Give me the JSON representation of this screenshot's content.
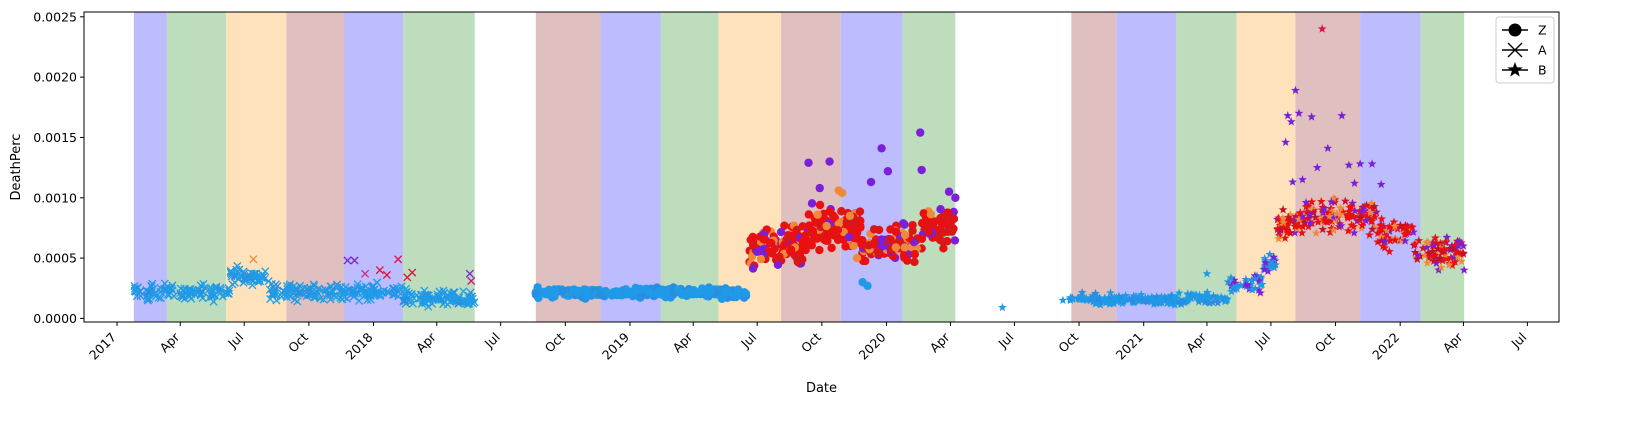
{
  "chart_data": {
    "type": "scatter",
    "title": "",
    "xlabel": "Date",
    "ylabel": "DeathPerc",
    "xlim": [
      "2016-11-15",
      "2022-08-15"
    ],
    "ylim": [
      -3e-05,
      0.00254
    ],
    "y_ticks": [
      0.0,
      0.0005,
      0.001,
      0.0015,
      0.002,
      0.0025
    ],
    "y_tick_labels": [
      "0.0000",
      "0.0005",
      "0.0010",
      "0.0015",
      "0.0020",
      "0.0025"
    ],
    "x_ticks": [
      {
        "date": "2017-01-01",
        "label": "2017"
      },
      {
        "date": "2017-04-01",
        "label": "Apr"
      },
      {
        "date": "2017-07-01",
        "label": "Jul"
      },
      {
        "date": "2017-10-01",
        "label": "Oct"
      },
      {
        "date": "2018-01-01",
        "label": "2018"
      },
      {
        "date": "2018-04-01",
        "label": "Apr"
      },
      {
        "date": "2018-07-01",
        "label": "Jul"
      },
      {
        "date": "2018-10-01",
        "label": "Oct"
      },
      {
        "date": "2019-01-01",
        "label": "2019"
      },
      {
        "date": "2019-04-01",
        "label": "Apr"
      },
      {
        "date": "2019-07-01",
        "label": "Jul"
      },
      {
        "date": "2019-10-01",
        "label": "Oct"
      },
      {
        "date": "2020-01-01",
        "label": "2020"
      },
      {
        "date": "2020-04-01",
        "label": "Apr"
      },
      {
        "date": "2020-07-01",
        "label": "Jul"
      },
      {
        "date": "2020-10-01",
        "label": "Oct"
      },
      {
        "date": "2021-01-01",
        "label": "2021"
      },
      {
        "date": "2021-04-01",
        "label": "Apr"
      },
      {
        "date": "2021-07-01",
        "label": "Jul"
      },
      {
        "date": "2021-10-01",
        "label": "Oct"
      },
      {
        "date": "2022-01-01",
        "label": "2022"
      },
      {
        "date": "2022-04-01",
        "label": "Apr"
      },
      {
        "date": "2022-07-01",
        "label": "Jul"
      }
    ],
    "season_colors": {
      "blue": "#b8b8ff",
      "green": "#b9dbb9",
      "orange": "#fde0b8",
      "red": "#ddbcbc"
    },
    "season_bands": [
      {
        "start": "2017-01-25",
        "end": "2017-03-13",
        "season": "blue"
      },
      {
        "start": "2017-03-13",
        "end": "2017-06-05",
        "season": "green"
      },
      {
        "start": "2017-06-05",
        "end": "2017-08-30",
        "season": "orange"
      },
      {
        "start": "2017-08-30",
        "end": "2017-11-20",
        "season": "red"
      },
      {
        "start": "2017-11-20",
        "end": "2018-02-12",
        "season": "blue"
      },
      {
        "start": "2018-02-12",
        "end": "2018-05-25",
        "season": "green"
      },
      {
        "start": "2018-08-20",
        "end": "2018-11-20",
        "season": "red"
      },
      {
        "start": "2018-11-20",
        "end": "2019-02-14",
        "season": "blue"
      },
      {
        "start": "2019-02-14",
        "end": "2019-05-07",
        "season": "green"
      },
      {
        "start": "2019-05-07",
        "end": "2019-08-04",
        "season": "orange"
      },
      {
        "start": "2019-08-04",
        "end": "2019-10-28",
        "season": "red"
      },
      {
        "start": "2019-10-28",
        "end": "2020-01-24",
        "season": "blue"
      },
      {
        "start": "2020-01-24",
        "end": "2020-04-08",
        "season": "green"
      },
      {
        "start": "2020-09-20",
        "end": "2020-11-23",
        "season": "red"
      },
      {
        "start": "2020-11-23",
        "end": "2021-02-16",
        "season": "blue"
      },
      {
        "start": "2021-02-16",
        "end": "2021-05-13",
        "season": "green"
      },
      {
        "start": "2021-05-13",
        "end": "2021-08-05",
        "season": "orange"
      },
      {
        "start": "2021-08-05",
        "end": "2021-11-05",
        "season": "red"
      },
      {
        "start": "2021-11-05",
        "end": "2022-01-30",
        "season": "blue"
      },
      {
        "start": "2022-01-30",
        "end": "2022-04-02",
        "season": "green"
      }
    ],
    "legend": {
      "position": "top-right",
      "entries": [
        {
          "label": "Z",
          "marker": "circle"
        },
        {
          "label": "A",
          "marker": "x"
        },
        {
          "label": "B",
          "marker": "star"
        }
      ]
    },
    "series": [
      {
        "name": "A",
        "marker": "x",
        "segments": [
          {
            "start": "2017-01-25",
            "end": "2018-05-25",
            "level": 0.00022,
            "spread": 0.0001,
            "per_week": 6,
            "colors": [
              "#1f9ae8",
              "#1f9ae8",
              "#1f9ae8",
              "#2a8ee0",
              "#1fa0e6"
            ],
            "bumps": [
              {
                "start": "2017-06-10",
                "end": "2017-08-05",
                "level": 0.00035
              },
              {
                "start": "2018-02-10",
                "end": "2018-05-25",
                "level": 0.00016
              }
            ]
          }
        ],
        "highlights": [
          {
            "x": "2017-11-25",
            "y": 0.00048,
            "color": "#7b1fd8"
          },
          {
            "x": "2017-12-05",
            "y": 0.00048,
            "color": "#7b1fd8"
          },
          {
            "x": "2018-01-10",
            "y": 0.0004,
            "color": "#e0103a"
          },
          {
            "x": "2018-01-20",
            "y": 0.00036,
            "color": "#e0103a"
          },
          {
            "x": "2018-02-05",
            "y": 0.00049,
            "color": "#e0103a"
          },
          {
            "x": "2018-02-18",
            "y": 0.00034,
            "color": "#e0103a"
          },
          {
            "x": "2018-02-25",
            "y": 0.00038,
            "color": "#e0103a"
          },
          {
            "x": "2017-12-20",
            "y": 0.00037,
            "color": "#d02a7a"
          },
          {
            "x": "2018-05-18",
            "y": 0.00037,
            "color": "#7b1fd8"
          },
          {
            "x": "2018-05-20",
            "y": 0.00031,
            "color": "#d0107a"
          },
          {
            "x": "2017-07-14",
            "y": 0.00049,
            "color": "#f08a3a"
          }
        ]
      },
      {
        "name": "Z",
        "marker": "circle",
        "segments": [
          {
            "start": "2018-08-20",
            "end": "2019-06-20",
            "level": 0.00021,
            "spread": 6e-05,
            "per_week": 7,
            "colors": [
              "#1f9ae8",
              "#1f9ae8",
              "#2a8ee0"
            ]
          },
          {
            "start": "2019-06-20",
            "end": "2020-04-08",
            "level": 0.0006,
            "spread": 0.00022,
            "per_week": 9,
            "colors": [
              "#e81010",
              "#e81010",
              "#e81010",
              "#d81818",
              "#7b1fd8",
              "#f08a3a"
            ],
            "bumps": [
              {
                "start": "2019-09-10",
                "end": "2019-11-25",
                "level": 0.00075
              },
              {
                "start": "2020-02-20",
                "end": "2020-04-08",
                "level": 0.00075
              }
            ]
          }
        ],
        "highlights": [
          {
            "x": "2019-09-12",
            "y": 0.00129,
            "color": "#7b1fd8"
          },
          {
            "x": "2019-10-12",
            "y": 0.0013,
            "color": "#7b1fd8"
          },
          {
            "x": "2019-09-28",
            "y": 0.00108,
            "color": "#7b1fd8"
          },
          {
            "x": "2019-12-25",
            "y": 0.00141,
            "color": "#7b1fd8"
          },
          {
            "x": "2020-02-18",
            "y": 0.00154,
            "color": "#7b1fd8"
          },
          {
            "x": "2020-02-20",
            "y": 0.00123,
            "color": "#7b1fd8"
          },
          {
            "x": "2020-01-03",
            "y": 0.00122,
            "color": "#7b1fd8"
          },
          {
            "x": "2019-12-10",
            "y": 0.00113,
            "color": "#7b1fd8"
          },
          {
            "x": "2020-03-30",
            "y": 0.00105,
            "color": "#7b1fd8"
          },
          {
            "x": "2019-10-25",
            "y": 0.00106,
            "color": "#f08a3a"
          },
          {
            "x": "2019-10-30",
            "y": 0.00104,
            "color": "#f08a3a"
          },
          {
            "x": "2019-11-10",
            "y": 0.00085,
            "color": "#f08a3a"
          },
          {
            "x": "2019-11-20",
            "y": 0.0005,
            "color": "#f08a3a"
          },
          {
            "x": "2019-11-28",
            "y": 0.0003,
            "color": "#1f9ae8"
          },
          {
            "x": "2019-12-05",
            "y": 0.00027,
            "color": "#1f9ae8"
          },
          {
            "x": "2019-11-15",
            "y": 0.0006,
            "color": "#f08a3a"
          },
          {
            "x": "2020-04-08",
            "y": 0.001,
            "color": "#7b1fd8"
          }
        ]
      },
      {
        "name": "B",
        "marker": "star",
        "segments": [
          {
            "start": "2020-09-18",
            "end": "2021-05-01",
            "level": 0.00016,
            "spread": 6e-05,
            "per_week": 6,
            "colors": [
              "#1f9ae8",
              "#1f9ae8",
              "#2a8ee0"
            ]
          },
          {
            "start": "2021-05-01",
            "end": "2021-07-10",
            "level": 0.00028,
            "spread": 0.00012,
            "per_week": 6,
            "colors": [
              "#1f9ae8",
              "#2a8ee0",
              "#7b1fd8"
            ],
            "bumps": [
              {
                "start": "2021-06-20",
                "end": "2021-07-10",
                "level": 0.00045
              }
            ]
          },
          {
            "start": "2021-07-10",
            "end": "2022-04-02",
            "level": 0.0007,
            "spread": 0.00018,
            "per_week": 8,
            "colors": [
              "#e81010",
              "#e81010",
              "#e81010",
              "#c4102a",
              "#7b1fd8",
              "#f08a3a"
            ],
            "bumps": [
              {
                "start": "2021-07-10",
                "end": "2021-08-20",
                "level": 0.00078
              },
              {
                "start": "2021-08-20",
                "end": "2021-11-30",
                "level": 0.00085
              },
              {
                "start": "2022-01-20",
                "end": "2022-04-02",
                "level": 0.00055
              }
            ]
          }
        ],
        "highlights": [
          {
            "x": "2020-06-14",
            "y": 9e-05,
            "color": "#1f9ae8"
          },
          {
            "x": "2020-09-08",
            "y": 0.00015,
            "color": "#1f9ae8"
          },
          {
            "x": "2021-08-05",
            "y": 0.00189,
            "color": "#7b1fd8"
          },
          {
            "x": "2021-09-12",
            "y": 0.0024,
            "color": "#e01050"
          },
          {
            "x": "2021-07-25",
            "y": 0.00168,
            "color": "#7b1fd8"
          },
          {
            "x": "2021-07-30",
            "y": 0.00163,
            "color": "#7b1fd8"
          },
          {
            "x": "2021-08-10",
            "y": 0.0017,
            "color": "#7b1fd8"
          },
          {
            "x": "2021-07-22",
            "y": 0.00146,
            "color": "#7b1fd8"
          },
          {
            "x": "2021-08-28",
            "y": 0.00167,
            "color": "#7b1fd8"
          },
          {
            "x": "2021-09-20",
            "y": 0.00141,
            "color": "#7b1fd8"
          },
          {
            "x": "2021-10-10",
            "y": 0.00168,
            "color": "#7b1fd8"
          },
          {
            "x": "2021-09-05",
            "y": 0.00125,
            "color": "#7b1fd8"
          },
          {
            "x": "2021-10-20",
            "y": 0.00127,
            "color": "#7b1fd8"
          },
          {
            "x": "2021-11-05",
            "y": 0.00128,
            "color": "#7b1fd8"
          },
          {
            "x": "2021-11-22",
            "y": 0.00128,
            "color": "#7b1fd8"
          },
          {
            "x": "2021-08-01",
            "y": 0.00113,
            "color": "#7b1fd8"
          },
          {
            "x": "2021-08-15",
            "y": 0.00115,
            "color": "#7b1fd8"
          },
          {
            "x": "2021-12-05",
            "y": 0.00111,
            "color": "#7b1fd8"
          },
          {
            "x": "2021-08-20",
            "y": 0.00096,
            "color": "#7b1fd8"
          },
          {
            "x": "2021-10-28",
            "y": 0.00112,
            "color": "#7b1fd8"
          },
          {
            "x": "2021-07-18",
            "y": 0.00083,
            "color": "#f08a3a"
          },
          {
            "x": "2021-07-12",
            "y": 0.00066,
            "color": "#f08a3a"
          },
          {
            "x": "2022-04-01",
            "y": 0.0006,
            "color": "#7b1fd8"
          },
          {
            "x": "2022-04-02",
            "y": 0.0004,
            "color": "#7b1fd8"
          },
          {
            "x": "2021-04-01",
            "y": 0.00037,
            "color": "#1f9ae8"
          }
        ]
      }
    ]
  }
}
